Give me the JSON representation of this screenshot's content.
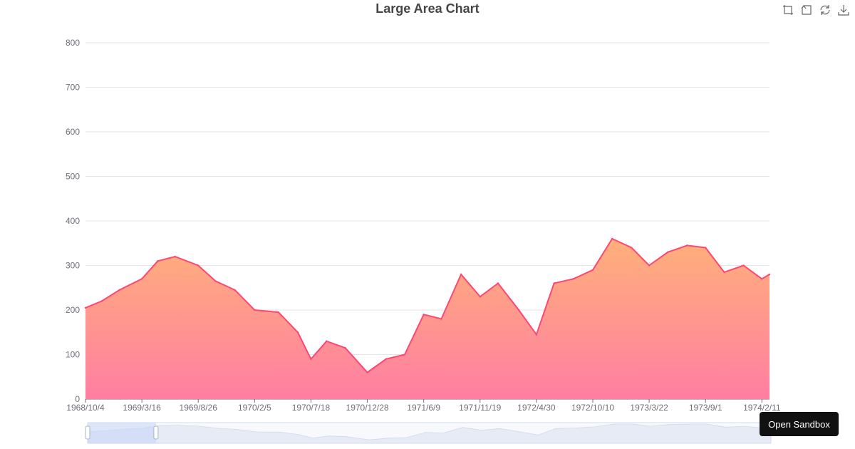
{
  "title": "Large Area Chart",
  "toolbox": [
    "zoom-icon",
    "zoom-reset-icon",
    "restore-icon",
    "save-image-icon"
  ],
  "sandbox_label": "Open Sandbox",
  "colors": {
    "line": "#ff4775",
    "area_top": "#ffb07a",
    "area_bottom": "#ff7ea2",
    "grid": "#e6e6e6",
    "axis": "#6e7079"
  },
  "chart_data": {
    "type": "area",
    "title": "Large Area Chart",
    "xlabel": "",
    "ylabel": "",
    "x_ticks": [
      "1968/10/4",
      "1969/3/16",
      "1969/8/26",
      "1970/2/5",
      "1970/7/18",
      "1970/12/28",
      "1971/6/9",
      "1971/11/19",
      "1972/4/30",
      "1972/10/10",
      "1973/3/22",
      "1973/9/1",
      "1974/2/11"
    ],
    "y_ticks": [
      0,
      100,
      200,
      300,
      400,
      500,
      600,
      700,
      800
    ],
    "ylim": [
      0,
      800
    ],
    "grid": true,
    "data_zoom": {
      "start": 0,
      "end": 10
    },
    "x": [
      "1968/10/4",
      "1968/11/20",
      "1969/1/10",
      "1969/3/16",
      "1969/5/1",
      "1969/6/20",
      "1969/8/26",
      "1969/10/15",
      "1969/12/10",
      "1970/2/5",
      "1970/4/15",
      "1970/6/10",
      "1970/7/18",
      "1970/9/1",
      "1970/10/25",
      "1970/12/28",
      "1971/2/20",
      "1971/4/15",
      "1971/6/9",
      "1971/7/30",
      "1971/9/25",
      "1971/11/19",
      "1972/1/10",
      "1972/3/10",
      "1972/4/30",
      "1972/6/20",
      "1972/8/15",
      "1972/10/10",
      "1972/12/5",
      "1973/1/30",
      "1973/3/22",
      "1973/5/15",
      "1973/7/10",
      "1973/9/1",
      "1973/10/25",
      "1973/12/20",
      "1974/2/11",
      "1974/3/5"
    ],
    "values": [
      205,
      220,
      245,
      270,
      310,
      320,
      300,
      265,
      245,
      200,
      195,
      150,
      90,
      130,
      115,
      60,
      90,
      100,
      190,
      180,
      280,
      230,
      260,
      200,
      145,
      260,
      270,
      290,
      360,
      340,
      300,
      330,
      345,
      340,
      285,
      300,
      270,
      280
    ]
  }
}
